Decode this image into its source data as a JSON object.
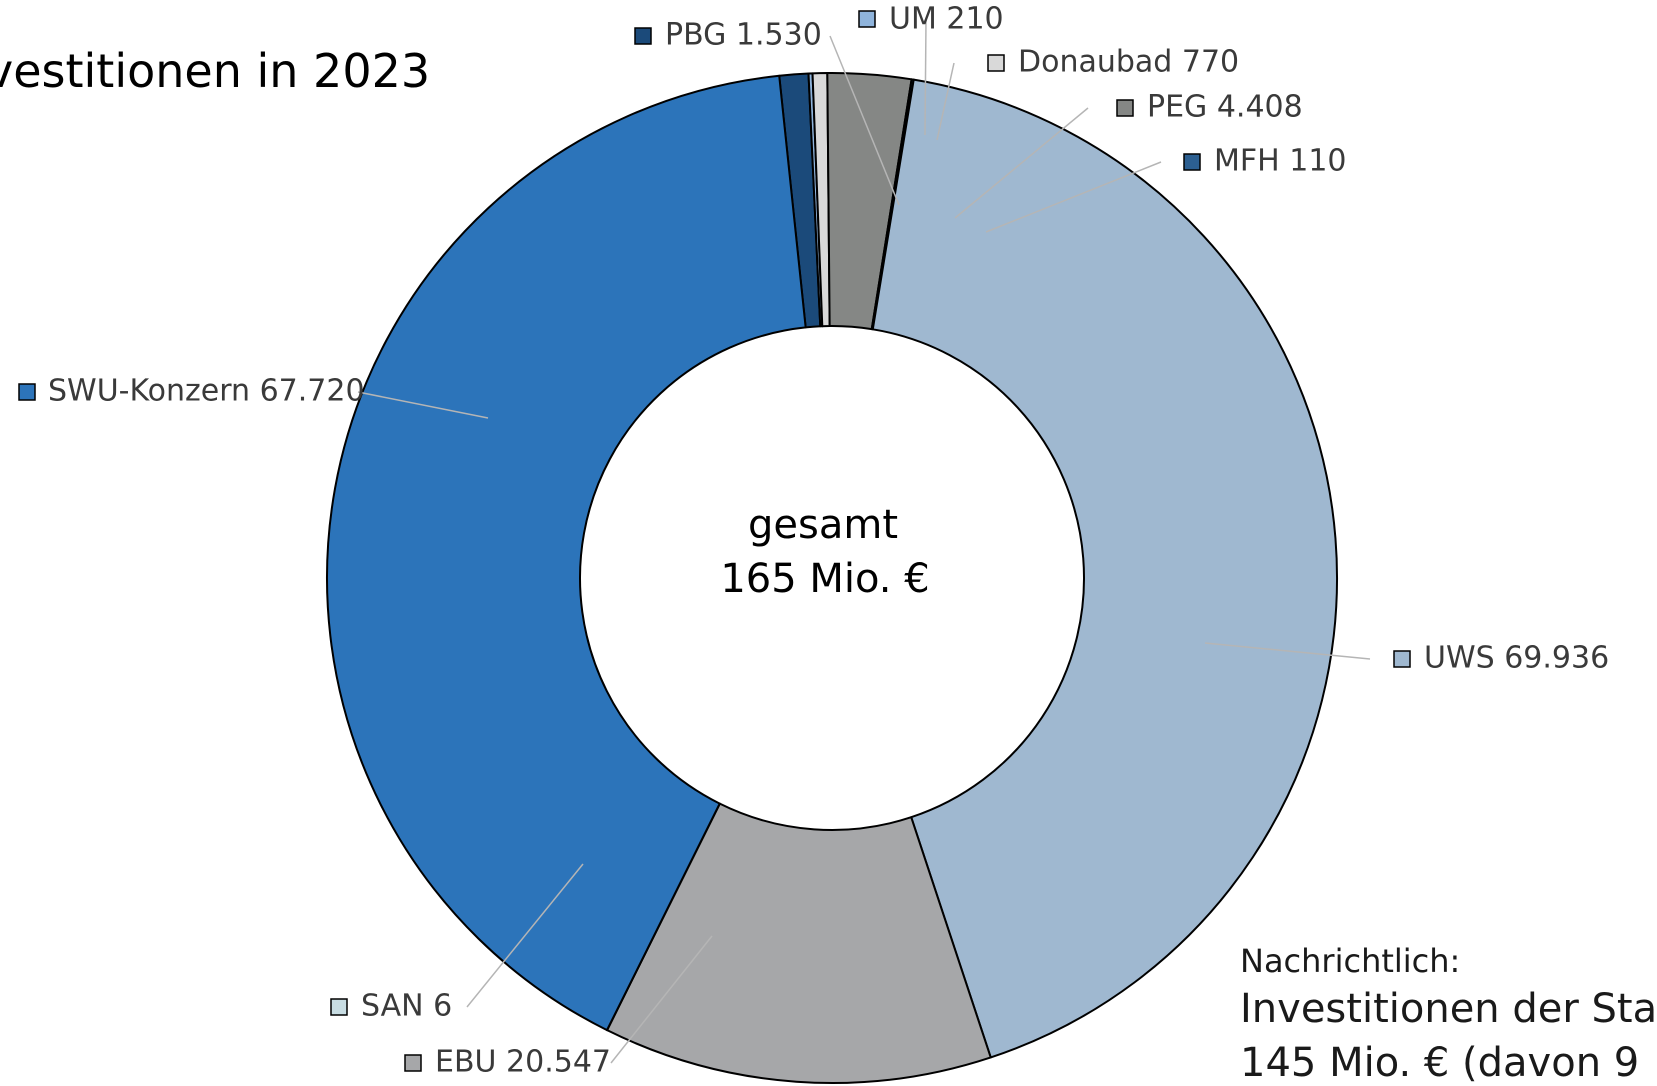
{
  "chart_data": {
    "type": "pie",
    "title": "vestitionen in 2023",
    "center_label": [
      "gesamt",
      "165 Mio. €"
    ],
    "slices": [
      {
        "label": "PBG 1.530",
        "value": 1530,
        "color": "#1b4a7a"
      },
      {
        "label": "UM 210",
        "value": 210,
        "color": "#8fb4dc"
      },
      {
        "label": "Donaubad 770",
        "value": 770,
        "color": "#d9d9d9"
      },
      {
        "label": "PEG 4.408",
        "value": 4408,
        "color": "#858785"
      },
      {
        "label": "MFH 110",
        "value": 110,
        "color": "#2c5f91"
      },
      {
        "label": "UWS  69.936",
        "value": 69936,
        "color": "#9fb8d0"
      },
      {
        "label": "EBU 20.547",
        "value": 20547,
        "color": "#a6a7a9"
      },
      {
        "label": "SAN 6",
        "value": 6,
        "color": "#c8dde3"
      },
      {
        "label": "SWU-Konzern 67.720",
        "value": 67720,
        "color": "#2c74ba"
      }
    ]
  },
  "note": {
    "heading": "Nachrichtlich:",
    "line1": "Investitionen der Sta",
    "line2": "145 Mio. € (davon 9"
  }
}
